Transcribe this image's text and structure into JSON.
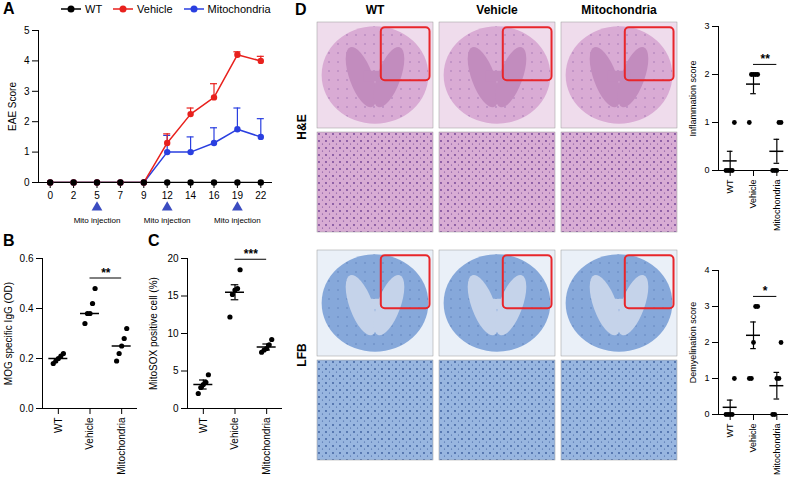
{
  "chart_data": [
    {
      "panel": "A",
      "type": "line",
      "categories": [
        "0",
        "2",
        "5",
        "7",
        "9",
        "12",
        "14",
        "16",
        "19",
        "22"
      ],
      "y_label": "EAE Score",
      "ylim": [
        0,
        5
      ],
      "yticks": [
        0,
        1,
        2,
        3,
        4,
        5
      ],
      "legend": "top",
      "marker": "circle",
      "series": [
        {
          "name": "WT",
          "color": "#000000",
          "values": [
            0,
            0,
            0,
            0,
            0,
            0,
            0,
            0,
            0,
            0
          ]
        },
        {
          "name": "Vehicle",
          "color": "#e8211d",
          "values": [
            0,
            0,
            0,
            0,
            0,
            1.3,
            2.25,
            2.8,
            4.2,
            4.0
          ],
          "errors": [
            0,
            0,
            0,
            0,
            0,
            0.3,
            0.2,
            0.45,
            0.1,
            0.15
          ]
        },
        {
          "name": "Mitochondria",
          "color": "#2a3fe0",
          "values": [
            0,
            0,
            0,
            0,
            0,
            1.0,
            1.0,
            1.3,
            1.75,
            1.5
          ],
          "errors": [
            0,
            0,
            0,
            0,
            0,
            0.55,
            0.5,
            0.5,
            0.7,
            0.6
          ]
        }
      ],
      "annotations": [
        {
          "text": "Mito injection",
          "x": "5"
        },
        {
          "text": "Mito injection",
          "x": "12"
        },
        {
          "text": "Mito injection",
          "x": "19"
        }
      ]
    },
    {
      "panel": "B",
      "type": "scatter",
      "categories": [
        "WT",
        "Vehicle",
        "Mitochondria"
      ],
      "y_label": "MOG specific IgG (OD)",
      "ylim": [
        0,
        0.6
      ],
      "yticks": [
        {
          "value": 0,
          "label": "0.0"
        },
        0.2,
        0.4,
        0.6
      ],
      "color": "#000000",
      "marker": "circle",
      "points": [
        [
          0.18,
          0.19,
          0.2,
          0.21,
          0.22
        ],
        [
          0.34,
          0.38,
          0.38,
          0.42,
          0.48
        ],
        [
          0.19,
          0.22,
          0.25,
          0.28,
          0.32
        ]
      ],
      "means": [
        0.2,
        0.38,
        0.25
      ],
      "annotations": [
        {
          "text": "**",
          "from": "Vehicle",
          "to": "Mitochondria"
        }
      ]
    },
    {
      "panel": "C",
      "type": "scatter",
      "categories": [
        "WT",
        "Vehicle",
        "Mitochondria"
      ],
      "y_label": "MitoSOX positive cell (%)",
      "ylim": [
        0,
        20
      ],
      "yticks": [
        0,
        5,
        10,
        15,
        20
      ],
      "color": "#000000",
      "marker": "circle",
      "points": [
        [
          2.0,
          2.8,
          3.2,
          3.5,
          4.5
        ],
        [
          12.2,
          15.2,
          15.8,
          16.0,
          18.5
        ],
        [
          7.5,
          7.8,
          8.0,
          8.5,
          9.2
        ]
      ],
      "means": [
        3.2,
        15.5,
        8.2
      ],
      "errors": [
        0.6,
        1.0,
        0.4
      ],
      "annotations": [
        {
          "text": "***",
          "from": "Vehicle",
          "to": "Mitochondria"
        }
      ]
    },
    {
      "type": "scatter",
      "categories": [
        "WT",
        "Vehicle",
        "Mitochondria"
      ],
      "y_label": "Inflammation score",
      "ylim": [
        0,
        3
      ],
      "yticks": [
        0,
        1,
        2,
        3
      ],
      "color": "#000000",
      "marker": "circle",
      "points": [
        [
          0,
          0,
          0,
          0,
          1
        ],
        [
          1,
          2,
          2,
          2,
          2
        ],
        [
          0,
          0,
          0,
          1,
          1
        ]
      ],
      "means": [
        0.2,
        1.8,
        0.4
      ],
      "errors": [
        0.2,
        0.2,
        0.25
      ],
      "annotations": [
        {
          "text": "**",
          "from": "Vehicle",
          "to": "Mitochondria"
        }
      ]
    },
    {
      "type": "scatter",
      "categories": [
        "WT",
        "Vehicle",
        "Mitochondria"
      ],
      "y_label": "Demyelination score",
      "ylim": [
        0,
        4
      ],
      "yticks": [
        0,
        1,
        2,
        3,
        4
      ],
      "color": "#000000",
      "marker": "circle",
      "points": [
        [
          0,
          0,
          0,
          0,
          1
        ],
        [
          1,
          1,
          2,
          3,
          3
        ],
        [
          0,
          0,
          1,
          1,
          2
        ]
      ],
      "means": [
        0.2,
        2.2,
        0.8
      ],
      "errors": [
        0.2,
        0.37,
        0.37
      ],
      "annotations": [
        {
          "text": "*",
          "from": "Vehicle",
          "to": "Mitochondria"
        }
      ]
    }
  ],
  "histology": {
    "panel": "D",
    "columns": [
      "WT",
      "Vehicle",
      "Mitochondria"
    ],
    "rows": [
      "H&E",
      "LFB"
    ]
  }
}
